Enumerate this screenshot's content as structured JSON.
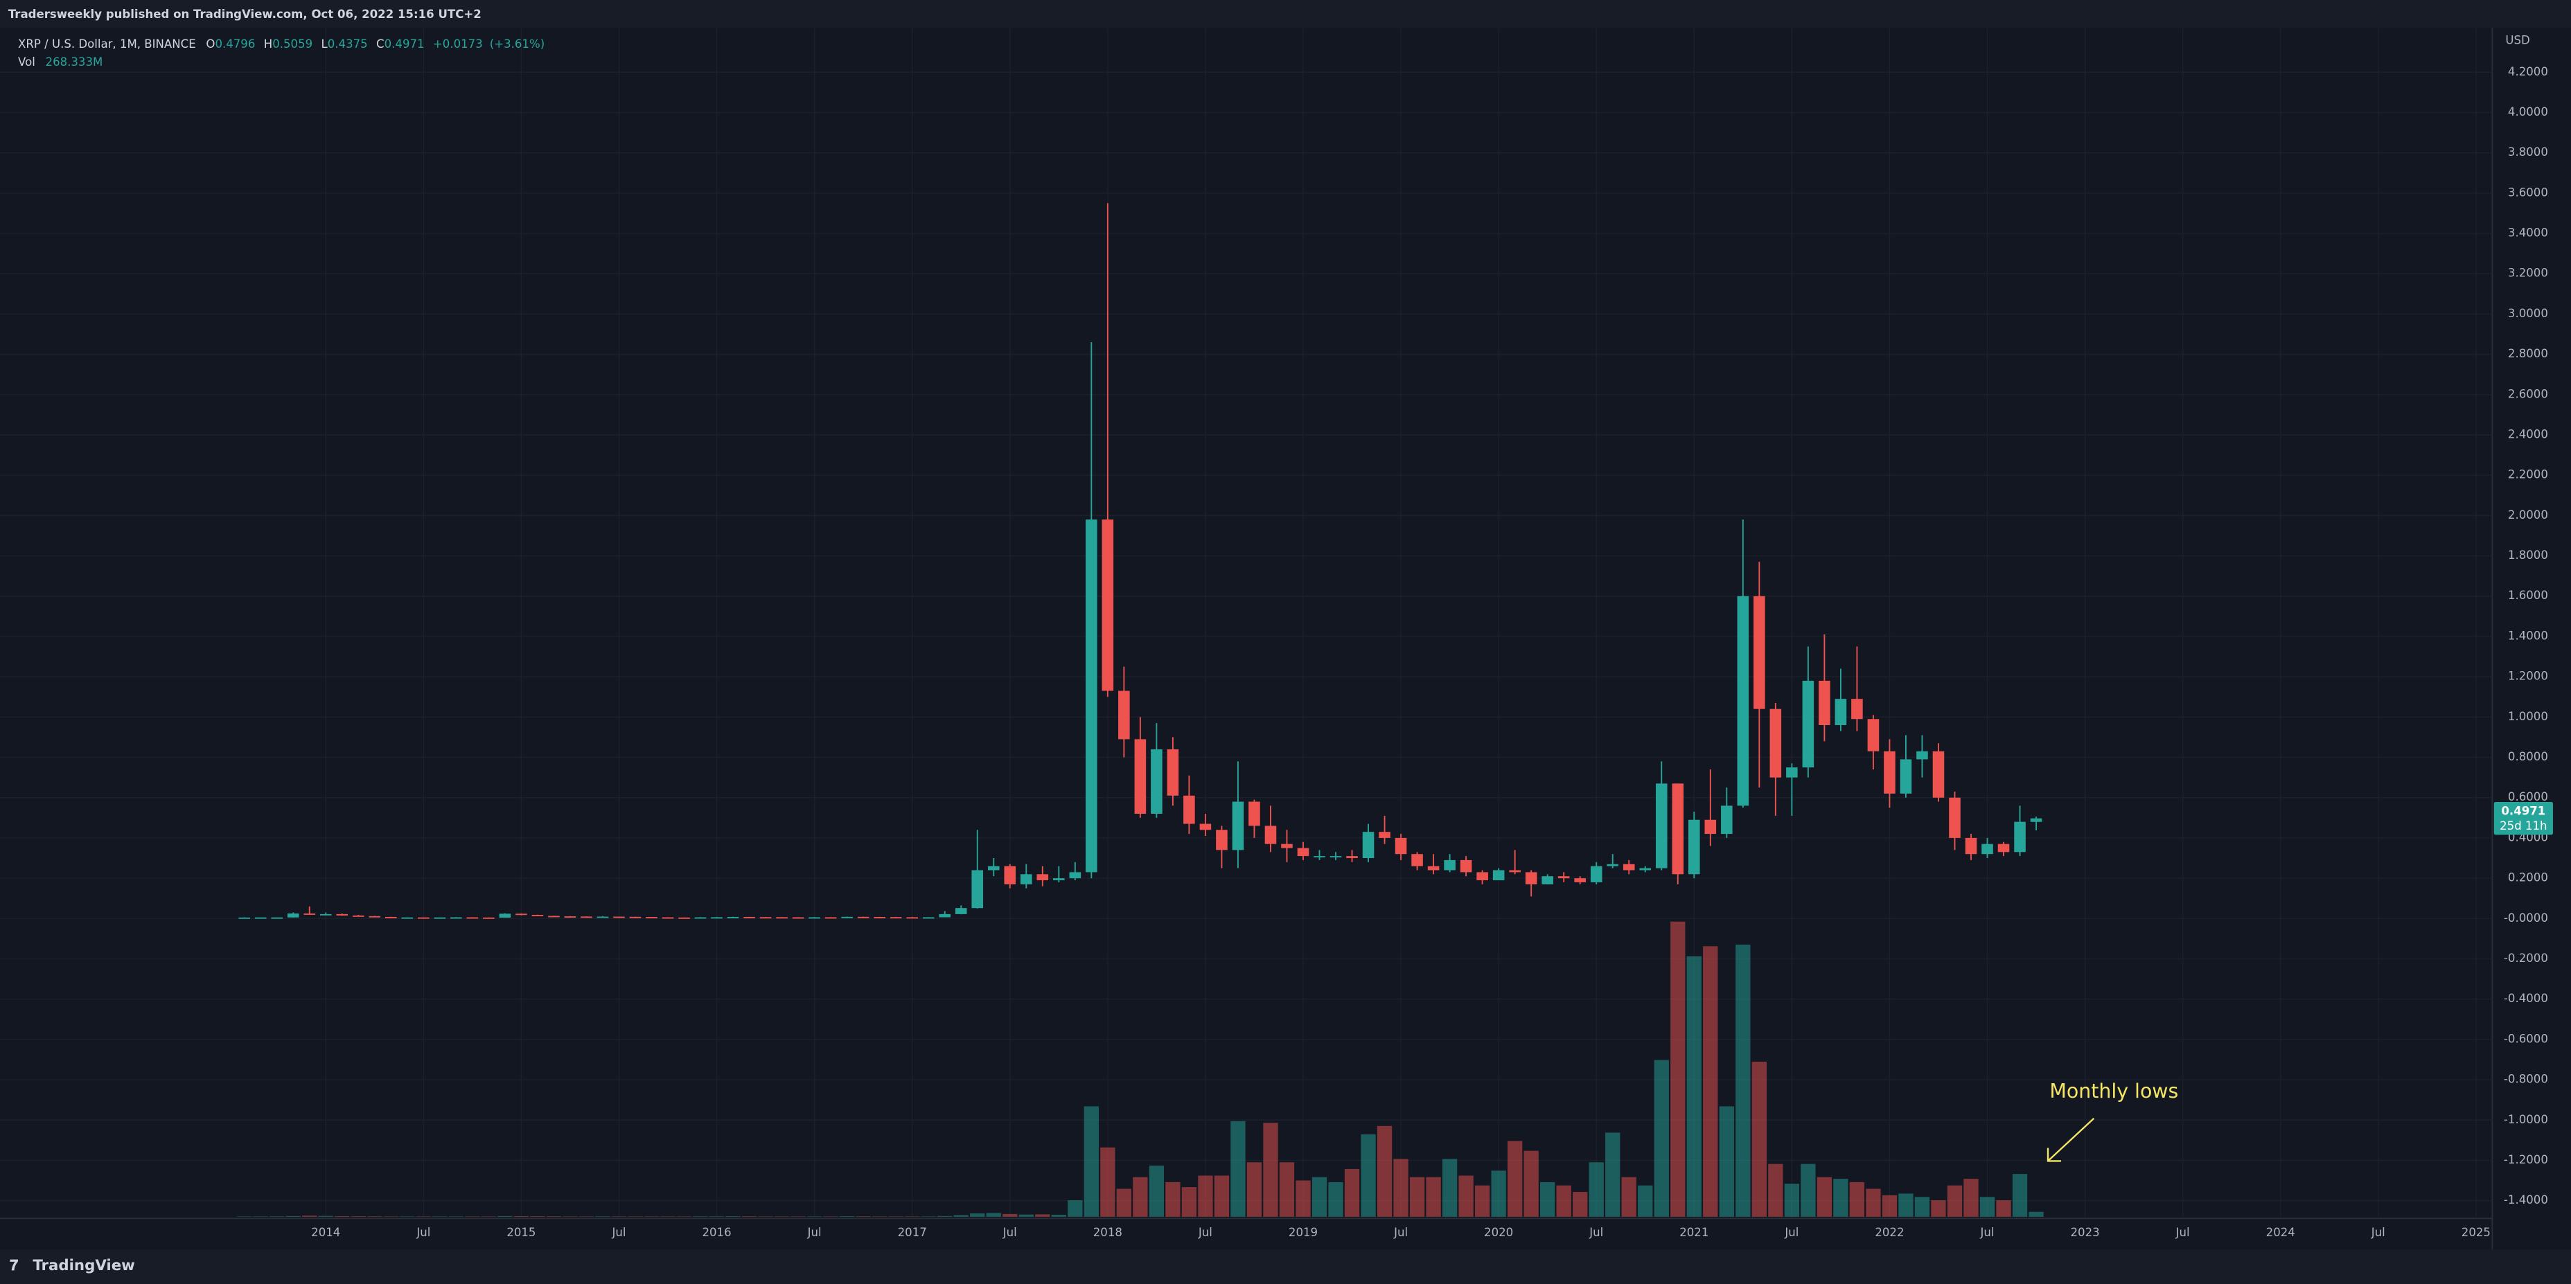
{
  "chart_data": {
    "type": "candlestick",
    "header": "Tradersweekly published on TradingView.com, Oct 06, 2022 15:16 UTC+2",
    "symbol": "XRP / U.S. Dollar, 1M, BINANCE",
    "ohlc_labels": [
      "O",
      "H",
      "L",
      "C"
    ],
    "change": "+0.0173",
    "change_pct": "(+3.61%)",
    "volume_name": "Vol",
    "volume_value_label": "268.333M",
    "currency": "USD",
    "countdown": "25d 11h",
    "annotation": "Monthly lows",
    "footer": "TradingView",
    "up_color": "#26a69a",
    "down_color": "#ef5350",
    "grid": true,
    "x": [
      "2013-08",
      "2013-09",
      "2013-10",
      "2013-11",
      "2013-12",
      "2014-01",
      "2014-02",
      "2014-03",
      "2014-04",
      "2014-05",
      "2014-06",
      "2014-07",
      "2014-08",
      "2014-09",
      "2014-10",
      "2014-11",
      "2014-12",
      "2015-01",
      "2015-02",
      "2015-03",
      "2015-04",
      "2015-05",
      "2015-06",
      "2015-07",
      "2015-08",
      "2015-09",
      "2015-10",
      "2015-11",
      "2015-12",
      "2016-01",
      "2016-02",
      "2016-03",
      "2016-04",
      "2016-05",
      "2016-06",
      "2016-07",
      "2016-08",
      "2016-09",
      "2016-10",
      "2016-11",
      "2016-12",
      "2017-01",
      "2017-02",
      "2017-03",
      "2017-04",
      "2017-05",
      "2017-06",
      "2017-07",
      "2017-08",
      "2017-09",
      "2017-10",
      "2017-11",
      "2017-12",
      "2018-01",
      "2018-02",
      "2018-03",
      "2018-04",
      "2018-05",
      "2018-06",
      "2018-07",
      "2018-08",
      "2018-09",
      "2018-10",
      "2018-11",
      "2018-12",
      "2019-01",
      "2019-02",
      "2019-03",
      "2019-04",
      "2019-05",
      "2019-06",
      "2019-07",
      "2019-08",
      "2019-09",
      "2019-10",
      "2019-11",
      "2019-12",
      "2020-01",
      "2020-02",
      "2020-03",
      "2020-04",
      "2020-05",
      "2020-06",
      "2020-07",
      "2020-08",
      "2020-09",
      "2020-10",
      "2020-11",
      "2020-12",
      "2021-01",
      "2021-02",
      "2021-03",
      "2021-04",
      "2021-05",
      "2021-06",
      "2021-07",
      "2021-08",
      "2021-09",
      "2021-10",
      "2021-11",
      "2021-12",
      "2022-01",
      "2022-02",
      "2022-03",
      "2022-04",
      "2022-05",
      "2022-06",
      "2022-07",
      "2022-08",
      "2022-09",
      "2022-10"
    ],
    "open": [
      0.005,
      0.005,
      0.0055,
      0.0055,
      0.025,
      0.02,
      0.022,
      0.015,
      0.012,
      0.008,
      0.005,
      0.0055,
      0.005,
      0.0055,
      0.006,
      0.005,
      0.0045,
      0.024,
      0.018,
      0.013,
      0.011,
      0.01,
      0.008,
      0.0095,
      0.0085,
      0.0078,
      0.006,
      0.005,
      0.0045,
      0.006,
      0.0065,
      0.008,
      0.007,
      0.0068,
      0.0062,
      0.006,
      0.0063,
      0.0062,
      0.0085,
      0.0078,
      0.0072,
      0.0065,
      0.0062,
      0.0063,
      0.022,
      0.052,
      0.24,
      0.26,
      0.17,
      0.22,
      0.19,
      0.2,
      0.23,
      1.98,
      1.13,
      0.89,
      0.52,
      0.84,
      0.61,
      0.47,
      0.44,
      0.34,
      0.58,
      0.46,
      0.37,
      0.35,
      0.31,
      0.31,
      0.31,
      0.3,
      0.43,
      0.4,
      0.32,
      0.26,
      0.24,
      0.29,
      0.23,
      0.19,
      0.24,
      0.23,
      0.17,
      0.21,
      0.2,
      0.18,
      0.26,
      0.27,
      0.24,
      0.25,
      0.67,
      0.22,
      0.49,
      0.42,
      0.56,
      1.6,
      1.04,
      0.7,
      0.75,
      1.18,
      0.96,
      1.09,
      0.99,
      0.83,
      0.62,
      0.79,
      0.83,
      0.6,
      0.4,
      0.32,
      0.37,
      0.33,
      0.4796
    ],
    "high": [
      0.006,
      0.006,
      0.006,
      0.03,
      0.06,
      0.03,
      0.025,
      0.018,
      0.013,
      0.009,
      0.006,
      0.006,
      0.006,
      0.007,
      0.0065,
      0.0055,
      0.026,
      0.025,
      0.019,
      0.014,
      0.012,
      0.011,
      0.012,
      0.01,
      0.009,
      0.008,
      0.0065,
      0.0055,
      0.007,
      0.0075,
      0.009,
      0.0085,
      0.0075,
      0.007,
      0.0068,
      0.0075,
      0.0068,
      0.0095,
      0.0095,
      0.0085,
      0.0075,
      0.0075,
      0.0068,
      0.037,
      0.065,
      0.44,
      0.3,
      0.27,
      0.27,
      0.26,
      0.26,
      0.28,
      2.86,
      3.55,
      1.25,
      1.0,
      0.97,
      0.9,
      0.71,
      0.52,
      0.46,
      0.78,
      0.59,
      0.56,
      0.44,
      0.38,
      0.34,
      0.33,
      0.34,
      0.47,
      0.51,
      0.42,
      0.33,
      0.32,
      0.32,
      0.31,
      0.24,
      0.25,
      0.34,
      0.24,
      0.22,
      0.23,
      0.21,
      0.28,
      0.32,
      0.29,
      0.26,
      0.78,
      0.67,
      0.53,
      0.74,
      0.65,
      1.98,
      1.77,
      1.07,
      0.77,
      1.35,
      1.41,
      1.24,
      1.35,
      1.01,
      0.89,
      0.91,
      0.91,
      0.87,
      0.63,
      0.42,
      0.4,
      0.38,
      0.56,
      0.5059
    ],
    "low": [
      0.004,
      0.005,
      0.005,
      0.005,
      0.02,
      0.018,
      0.014,
      0.011,
      0.007,
      0.0045,
      0.0045,
      0.0048,
      0.0048,
      0.005,
      0.0045,
      0.004,
      0.0045,
      0.016,
      0.012,
      0.01,
      0.009,
      0.007,
      0.008,
      0.008,
      0.007,
      0.0055,
      0.0048,
      0.0035,
      0.004,
      0.0055,
      0.006,
      0.0065,
      0.0062,
      0.0058,
      0.0055,
      0.0055,
      0.0058,
      0.006,
      0.0075,
      0.0068,
      0.0058,
      0.0058,
      0.0058,
      0.006,
      0.021,
      0.05,
      0.21,
      0.15,
      0.15,
      0.16,
      0.18,
      0.19,
      0.2,
      1.1,
      0.8,
      0.5,
      0.5,
      0.56,
      0.42,
      0.41,
      0.25,
      0.25,
      0.4,
      0.33,
      0.28,
      0.29,
      0.29,
      0.29,
      0.28,
      0.28,
      0.37,
      0.29,
      0.24,
      0.22,
      0.23,
      0.21,
      0.17,
      0.19,
      0.22,
      0.11,
      0.17,
      0.18,
      0.17,
      0.17,
      0.25,
      0.22,
      0.23,
      0.24,
      0.17,
      0.2,
      0.36,
      0.4,
      0.55,
      0.65,
      0.51,
      0.51,
      0.7,
      0.88,
      0.93,
      0.93,
      0.74,
      0.55,
      0.6,
      0.7,
      0.58,
      0.34,
      0.29,
      0.3,
      0.31,
      0.31,
      0.4375
    ],
    "close": [
      0.005,
      0.0055,
      0.0055,
      0.025,
      0.02,
      0.022,
      0.015,
      0.012,
      0.008,
      0.005,
      0.0055,
      0.005,
      0.0055,
      0.006,
      0.005,
      0.0045,
      0.024,
      0.018,
      0.013,
      0.011,
      0.01,
      0.008,
      0.0095,
      0.0085,
      0.0078,
      0.006,
      0.005,
      0.0045,
      0.006,
      0.0065,
      0.008,
      0.007,
      0.0068,
      0.0062,
      0.006,
      0.0063,
      0.0062,
      0.0085,
      0.0078,
      0.0072,
      0.0065,
      0.0062,
      0.0063,
      0.022,
      0.052,
      0.24,
      0.26,
      0.17,
      0.22,
      0.19,
      0.2,
      0.23,
      1.98,
      1.13,
      0.89,
      0.52,
      0.84,
      0.61,
      0.47,
      0.44,
      0.34,
      0.58,
      0.46,
      0.37,
      0.35,
      0.31,
      0.31,
      0.31,
      0.3,
      0.43,
      0.4,
      0.32,
      0.26,
      0.24,
      0.29,
      0.23,
      0.19,
      0.24,
      0.23,
      0.17,
      0.21,
      0.2,
      0.18,
      0.26,
      0.27,
      0.24,
      0.25,
      0.67,
      0.22,
      0.49,
      0.42,
      0.56,
      1.6,
      1.04,
      0.7,
      0.75,
      1.18,
      0.96,
      1.09,
      0.99,
      0.83,
      0.62,
      0.79,
      0.83,
      0.6,
      0.4,
      0.32,
      0.37,
      0.33,
      0.48,
      0.4971
    ],
    "volume": [
      20,
      20,
      25,
      40,
      60,
      45,
      35,
      30,
      25,
      20,
      20,
      20,
      20,
      20,
      20,
      20,
      40,
      35,
      30,
      25,
      20,
      20,
      25,
      20,
      20,
      20,
      20,
      20,
      25,
      25,
      30,
      25,
      20,
      20,
      20,
      20,
      20,
      30,
      25,
      20,
      20,
      20,
      20,
      40,
      90,
      180,
      200,
      150,
      120,
      130,
      110,
      890,
      5960,
      3740,
      1510,
      2140,
      2760,
      1870,
      1600,
      2220,
      2220,
      5160,
      2940,
      5070,
      2940,
      1960,
      2140,
      1870,
      2580,
      4450,
      4900,
      3120,
      2140,
      2140,
      3120,
      2220,
      1690,
      2490,
      4090,
      3560,
      1870,
      1690,
      1340,
      2940,
      4540,
      2140,
      1690,
      8460,
      15930,
      14060,
      14600,
      5960,
      14690,
      8370,
      2850,
      1780,
      2850,
      2140,
      2050,
      1870,
      1510,
      1160,
      1250,
      1070,
      890,
      1690,
      2050,
      1070,
      890,
      2310,
      268.333
    ],
    "xlim": [
      "2012-05",
      "2025-02"
    ],
    "xticks": [
      {
        "value": "2014-01",
        "label": "2014"
      },
      {
        "value": "2014-07",
        "label": "Jul"
      },
      {
        "value": "2015-01",
        "label": "2015"
      },
      {
        "value": "2015-07",
        "label": "Jul"
      },
      {
        "value": "2016-01",
        "label": "2016"
      },
      {
        "value": "2016-07",
        "label": "Jul"
      },
      {
        "value": "2017-01",
        "label": "2017"
      },
      {
        "value": "2017-07",
        "label": "Jul"
      },
      {
        "value": "2018-01",
        "label": "2018"
      },
      {
        "value": "2018-07",
        "label": "Jul"
      },
      {
        "value": "2019-01",
        "label": "2019"
      },
      {
        "value": "2019-07",
        "label": "Jul"
      },
      {
        "value": "2020-01",
        "label": "2020"
      },
      {
        "value": "2020-07",
        "label": "Jul"
      },
      {
        "value": "2021-01",
        "label": "2021"
      },
      {
        "value": "2021-07",
        "label": "Jul"
      },
      {
        "value": "2022-01",
        "label": "2022"
      },
      {
        "value": "2022-07",
        "label": "Jul"
      },
      {
        "value": "2023-01",
        "label": "2023"
      },
      {
        "value": "2023-07",
        "label": "Jul"
      },
      {
        "value": "2024-01",
        "label": "2024"
      },
      {
        "value": "2024-07",
        "label": "Jul"
      },
      {
        "value": "2025-01",
        "label": "2025"
      }
    ],
    "ylim": [
      -1.48,
      4.42
    ],
    "yticks": [
      {
        "value": 4.2,
        "label": "4.2000"
      },
      {
        "value": 4.0,
        "label": "4.0000"
      },
      {
        "value": 3.8,
        "label": "3.8000"
      },
      {
        "value": 3.6,
        "label": "3.6000"
      },
      {
        "value": 3.4,
        "label": "3.4000"
      },
      {
        "value": 3.2,
        "label": "3.2000"
      },
      {
        "value": 3.0,
        "label": "3.0000"
      },
      {
        "value": 2.8,
        "label": "2.8000"
      },
      {
        "value": 2.6,
        "label": "2.6000"
      },
      {
        "value": 2.4,
        "label": "2.4000"
      },
      {
        "value": 2.2,
        "label": "2.2000"
      },
      {
        "value": 2.0,
        "label": "2.0000"
      },
      {
        "value": 1.8,
        "label": "1.8000"
      },
      {
        "value": 1.6,
        "label": "1.6000"
      },
      {
        "value": 1.4,
        "label": "1.4000"
      },
      {
        "value": 1.2,
        "label": "1.2000"
      },
      {
        "value": 1.0,
        "label": "1.0000"
      },
      {
        "value": 0.8,
        "label": "0.8000"
      },
      {
        "value": 0.6,
        "label": "0.6000"
      },
      {
        "value": 0.4,
        "label": "0.4000"
      },
      {
        "value": 0.2,
        "label": "0.2000"
      },
      {
        "value": 0,
        "label": "-0.0000"
      },
      {
        "value": -0.2,
        "label": "-0.2000"
      },
      {
        "value": -0.4,
        "label": "-0.4000"
      },
      {
        "value": -0.6,
        "label": "-0.6000"
      },
      {
        "value": -0.8,
        "label": "-0.8000"
      },
      {
        "value": -1.0,
        "label": "-1.0000"
      },
      {
        "value": -1.2,
        "label": "-1.2000"
      },
      {
        "value": -1.4,
        "label": "-1.4000"
      }
    ]
  }
}
